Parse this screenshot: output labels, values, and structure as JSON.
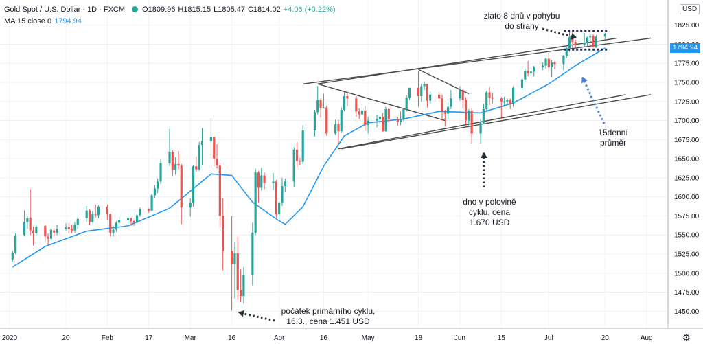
{
  "legend": {
    "title": "Gold Spot / U.S. Dollar · 1D · FXCM",
    "open": "O1809.96",
    "high": "H1815.15",
    "low": "L1805.47",
    "close": "C1814.02",
    "change": "+4.06 (+0.22%)",
    "ma_label": "MA 15 close 0",
    "ma_value": "1794.94"
  },
  "currency": "USD",
  "last_price_tag": "1794.94",
  "colors": {
    "up": "#26a69a",
    "down": "#ef5350",
    "ma": "#2196f3",
    "trendline": "#4a4a4a",
    "marker": "#1a237e"
  },
  "chart_data": {
    "type": "candlestick",
    "title": "Gold Spot / U.S. Dollar · 1D · FXCM",
    "ylim": [
      1435,
      1840
    ],
    "y_ticks": [
      1450,
      1475,
      1500,
      1525,
      1550,
      1575,
      1600,
      1625,
      1650,
      1675,
      1700,
      1725,
      1750,
      1775,
      1800,
      1825
    ],
    "x_ticks": [
      "2020",
      "20",
      "Feb",
      "17",
      "Mar",
      "16",
      "Apr",
      "16",
      "May",
      "18",
      "Jun",
      "15",
      "Jul",
      "20",
      "Aug"
    ],
    "x_tick_dates": [
      "2020-01-01",
      "2020-01-20",
      "2020-02-03",
      "2020-02-17",
      "2020-03-02",
      "2020-03-16",
      "2020-04-01",
      "2020-04-16",
      "2020-05-01",
      "2020-05-18",
      "2020-06-01",
      "2020-06-15",
      "2020-07-01",
      "2020-07-20",
      "2020-08-03"
    ],
    "candles": [
      [
        "2020-01-02",
        1518,
        1529,
        1515,
        1527
      ],
      [
        "2020-01-03",
        1527,
        1552,
        1525,
        1549
      ],
      [
        "2020-01-06",
        1550,
        1582,
        1548,
        1567
      ],
      [
        "2020-01-07",
        1567,
        1575,
        1558,
        1572
      ],
      [
        "2020-01-08",
        1573,
        1610,
        1550,
        1556
      ],
      [
        "2020-01-09",
        1556,
        1561,
        1536,
        1552
      ],
      [
        "2020-01-10",
        1552,
        1563,
        1549,
        1561
      ],
      [
        "2020-01-13",
        1562,
        1563,
        1541,
        1548
      ],
      [
        "2020-01-14",
        1548,
        1552,
        1536,
        1545
      ],
      [
        "2020-01-15",
        1545,
        1559,
        1542,
        1557
      ],
      [
        "2020-01-16",
        1556,
        1559,
        1548,
        1553
      ],
      [
        "2020-01-17",
        1553,
        1563,
        1550,
        1558
      ],
      [
        "2020-01-20",
        1558,
        1565,
        1556,
        1560
      ],
      [
        "2020-01-21",
        1560,
        1566,
        1552,
        1558
      ],
      [
        "2020-01-22",
        1558,
        1563,
        1553,
        1556
      ],
      [
        "2020-01-23",
        1556,
        1567,
        1553,
        1563
      ],
      [
        "2020-01-24",
        1563,
        1574,
        1558,
        1571
      ],
      [
        "2020-01-27",
        1572,
        1588,
        1567,
        1582
      ],
      [
        "2020-01-28",
        1582,
        1584,
        1563,
        1567
      ],
      [
        "2020-01-29",
        1567,
        1581,
        1566,
        1577
      ],
      [
        "2020-01-30",
        1577,
        1590,
        1573,
        1576
      ],
      [
        "2020-01-31",
        1576,
        1589,
        1572,
        1587
      ],
      [
        "2020-02-03",
        1587,
        1590,
        1570,
        1577
      ],
      [
        "2020-02-04",
        1577,
        1578,
        1548,
        1553
      ],
      [
        "2020-02-05",
        1553,
        1562,
        1548,
        1557
      ],
      [
        "2020-02-06",
        1557,
        1568,
        1554,
        1566
      ],
      [
        "2020-02-07",
        1566,
        1574,
        1562,
        1570
      ],
      [
        "2020-02-10",
        1570,
        1575,
        1565,
        1572
      ],
      [
        "2020-02-11",
        1572,
        1573,
        1562,
        1568
      ],
      [
        "2020-02-12",
        1568,
        1570,
        1562,
        1566
      ],
      [
        "2020-02-13",
        1566,
        1578,
        1564,
        1576
      ],
      [
        "2020-02-14",
        1576,
        1586,
        1574,
        1584
      ],
      [
        "2020-02-17",
        1584,
        1585,
        1579,
        1582
      ],
      [
        "2020-02-18",
        1582,
        1604,
        1581,
        1602
      ],
      [
        "2020-02-19",
        1602,
        1615,
        1599,
        1611
      ],
      [
        "2020-02-20",
        1611,
        1624,
        1605,
        1620
      ],
      [
        "2020-02-21",
        1620,
        1649,
        1617,
        1644
      ],
      [
        "2020-02-24",
        1644,
        1689,
        1640,
        1659
      ],
      [
        "2020-02-25",
        1659,
        1661,
        1627,
        1635
      ],
      [
        "2020-02-26",
        1635,
        1652,
        1629,
        1643
      ],
      [
        "2020-02-27",
        1643,
        1660,
        1636,
        1641
      ],
      [
        "2020-02-28",
        1641,
        1643,
        1564,
        1586
      ],
      [
        "2020-03-02",
        1586,
        1598,
        1574,
        1592
      ],
      [
        "2020-03-03",
        1592,
        1642,
        1587,
        1640
      ],
      [
        "2020-03-04",
        1640,
        1653,
        1633,
        1636
      ],
      [
        "2020-03-05",
        1636,
        1672,
        1634,
        1668
      ],
      [
        "2020-03-06",
        1668,
        1690,
        1642,
        1673
      ],
      [
        "2020-03-09",
        1673,
        1703,
        1651,
        1678
      ],
      [
        "2020-03-10",
        1678,
        1680,
        1640,
        1650
      ],
      [
        "2020-03-11",
        1650,
        1669,
        1637,
        1641
      ],
      [
        "2020-03-12",
        1641,
        1645,
        1560,
        1575
      ],
      [
        "2020-03-13",
        1575,
        1598,
        1504,
        1529
      ],
      [
        "2020-03-16",
        1529,
        1575,
        1451,
        1512
      ],
      [
        "2020-03-17",
        1512,
        1541,
        1467,
        1526
      ],
      [
        "2020-03-18",
        1526,
        1548,
        1465,
        1478
      ],
      [
        "2020-03-19",
        1478,
        1505,
        1462,
        1470
      ],
      [
        "2020-03-20",
        1470,
        1508,
        1460,
        1498
      ],
      [
        "2020-03-23",
        1498,
        1566,
        1484,
        1553
      ],
      [
        "2020-03-24",
        1553,
        1637,
        1550,
        1632
      ],
      [
        "2020-03-25",
        1632,
        1634,
        1592,
        1612
      ],
      [
        "2020-03-26",
        1612,
        1638,
        1608,
        1628
      ],
      [
        "2020-03-27",
        1628,
        1632,
        1610,
        1618
      ],
      [
        "2020-03-30",
        1618,
        1631,
        1609,
        1620
      ],
      [
        "2020-03-31",
        1620,
        1622,
        1572,
        1577
      ],
      [
        "2020-04-01",
        1577,
        1594,
        1571,
        1592
      ],
      [
        "2020-04-02",
        1592,
        1625,
        1588,
        1614
      ],
      [
        "2020-04-03",
        1614,
        1624,
        1606,
        1620
      ],
      [
        "2020-04-06",
        1620,
        1665,
        1613,
        1662
      ],
      [
        "2020-04-07",
        1662,
        1672,
        1639,
        1647
      ],
      [
        "2020-04-08",
        1647,
        1651,
        1642,
        1646
      ],
      [
        "2020-04-09",
        1646,
        1694,
        1643,
        1687
      ],
      [
        "2020-04-13",
        1687,
        1714,
        1679,
        1711
      ],
      [
        "2020-04-14",
        1711,
        1745,
        1708,
        1727
      ],
      [
        "2020-04-15",
        1727,
        1729,
        1704,
        1716
      ],
      [
        "2020-04-16",
        1716,
        1735,
        1716,
        1717
      ],
      [
        "2020-04-17",
        1717,
        1719,
        1680,
        1683
      ],
      [
        "2020-04-20",
        1683,
        1701,
        1681,
        1695
      ],
      [
        "2020-04-21",
        1695,
        1701,
        1670,
        1686
      ],
      [
        "2020-04-22",
        1686,
        1717,
        1684,
        1714
      ],
      [
        "2020-04-23",
        1714,
        1738,
        1712,
        1732
      ],
      [
        "2020-04-24",
        1732,
        1737,
        1719,
        1729
      ],
      [
        "2020-04-27",
        1729,
        1732,
        1705,
        1712
      ],
      [
        "2020-04-28",
        1712,
        1716,
        1702,
        1708
      ],
      [
        "2020-04-29",
        1708,
        1718,
        1700,
        1713
      ],
      [
        "2020-04-30",
        1713,
        1719,
        1686,
        1694
      ],
      [
        "2020-05-01",
        1694,
        1705,
        1683,
        1700
      ],
      [
        "2020-05-04",
        1700,
        1707,
        1691,
        1702
      ],
      [
        "2020-05-05",
        1702,
        1708,
        1695,
        1705
      ],
      [
        "2020-05-06",
        1705,
        1710,
        1685,
        1686
      ],
      [
        "2020-05-07",
        1686,
        1718,
        1685,
        1715
      ],
      [
        "2020-05-08",
        1715,
        1718,
        1697,
        1702
      ],
      [
        "2020-05-11",
        1702,
        1705,
        1693,
        1698
      ],
      [
        "2020-05-12",
        1698,
        1712,
        1694,
        1701
      ],
      [
        "2020-05-13",
        1701,
        1716,
        1699,
        1715
      ],
      [
        "2020-05-14",
        1715,
        1733,
        1712,
        1730
      ],
      [
        "2020-05-15",
        1730,
        1743,
        1727,
        1743
      ],
      [
        "2020-05-18",
        1743,
        1765,
        1718,
        1732
      ],
      [
        "2020-05-19",
        1732,
        1748,
        1725,
        1745
      ],
      [
        "2020-05-20",
        1745,
        1751,
        1740,
        1748
      ],
      [
        "2020-05-21",
        1748,
        1748,
        1717,
        1726
      ],
      [
        "2020-05-22",
        1726,
        1738,
        1722,
        1734
      ],
      [
        "2020-05-25",
        1734,
        1737,
        1725,
        1729
      ],
      [
        "2020-05-26",
        1729,
        1734,
        1700,
        1711
      ],
      [
        "2020-05-27",
        1711,
        1714,
        1692,
        1709
      ],
      [
        "2020-05-28",
        1709,
        1724,
        1702,
        1718
      ],
      [
        "2020-05-29",
        1718,
        1740,
        1715,
        1729
      ],
      [
        "2020-06-01",
        1729,
        1745,
        1726,
        1740
      ],
      [
        "2020-06-02",
        1740,
        1742,
        1716,
        1727
      ],
      [
        "2020-06-03",
        1727,
        1730,
        1694,
        1700
      ],
      [
        "2020-06-04",
        1700,
        1715,
        1693,
        1713
      ],
      [
        "2020-06-05",
        1713,
        1716,
        1670,
        1683
      ],
      [
        "2020-06-08",
        1683,
        1702,
        1670,
        1697
      ],
      [
        "2020-06-09",
        1697,
        1722,
        1695,
        1715
      ],
      [
        "2020-06-10",
        1715,
        1739,
        1712,
        1737
      ],
      [
        "2020-06-11",
        1737,
        1745,
        1720,
        1730
      ],
      [
        "2020-06-12",
        1730,
        1736,
        1722,
        1729
      ],
      [
        "2020-06-15",
        1729,
        1731,
        1703,
        1725
      ],
      [
        "2020-06-16",
        1725,
        1731,
        1718,
        1725
      ],
      [
        "2020-06-17",
        1725,
        1729,
        1722,
        1727
      ],
      [
        "2020-06-18",
        1727,
        1729,
        1715,
        1722
      ],
      [
        "2020-06-19",
        1722,
        1745,
        1718,
        1743
      ],
      [
        "2020-06-22",
        1743,
        1756,
        1740,
        1754
      ],
      [
        "2020-06-23",
        1754,
        1768,
        1750,
        1765
      ],
      [
        "2020-06-24",
        1765,
        1778,
        1758,
        1762
      ],
      [
        "2020-06-25",
        1762,
        1770,
        1755,
        1764
      ],
      [
        "2020-06-26",
        1764,
        1772,
        1758,
        1770
      ],
      [
        "2020-06-29",
        1770,
        1776,
        1766,
        1772
      ],
      [
        "2020-06-30",
        1772,
        1782,
        1768,
        1781
      ],
      [
        "2020-07-01",
        1781,
        1789,
        1764,
        1770
      ],
      [
        "2020-07-02",
        1770,
        1779,
        1757,
        1776
      ],
      [
        "2020-07-03",
        1776,
        1778,
        1767,
        1774
      ],
      [
        "2020-07-06",
        1774,
        1786,
        1766,
        1785
      ],
      [
        "2020-07-07",
        1785,
        1797,
        1782,
        1795
      ],
      [
        "2020-07-08",
        1795,
        1818,
        1790,
        1809
      ],
      [
        "2020-07-09",
        1809,
        1818,
        1795,
        1803
      ],
      [
        "2020-07-10",
        1803,
        1806,
        1795,
        1799
      ],
      [
        "2020-07-13",
        1799,
        1815,
        1797,
        1802
      ],
      [
        "2020-07-14",
        1802,
        1810,
        1797,
        1809
      ],
      [
        "2020-07-15",
        1809,
        1813,
        1801,
        1811
      ],
      [
        "2020-07-16",
        1811,
        1813,
        1796,
        1796
      ],
      [
        "2020-07-17",
        1796,
        1812,
        1795,
        1810
      ],
      [
        "2020-07-20",
        1810,
        1815,
        1805,
        1814
      ]
    ],
    "ma": {
      "name": "MA 15 close 0",
      "points": [
        [
          "2020-01-02",
          1508
        ],
        [
          "2020-01-13",
          1535
        ],
        [
          "2020-01-27",
          1555
        ],
        [
          "2020-02-10",
          1562
        ],
        [
          "2020-02-24",
          1585
        ],
        [
          "2020-03-09",
          1630
        ],
        [
          "2020-03-16",
          1628
        ],
        [
          "2020-03-23",
          1593
        ],
        [
          "2020-03-31",
          1571
        ],
        [
          "2020-04-03",
          1564
        ],
        [
          "2020-04-09",
          1587
        ],
        [
          "2020-04-16",
          1640
        ],
        [
          "2020-04-23",
          1680
        ],
        [
          "2020-05-01",
          1697
        ],
        [
          "2020-05-13",
          1702
        ],
        [
          "2020-05-25",
          1712
        ],
        [
          "2020-06-08",
          1710
        ],
        [
          "2020-06-19",
          1723
        ],
        [
          "2020-07-01",
          1748
        ],
        [
          "2020-07-10",
          1772
        ],
        [
          "2020-07-20",
          1795
        ]
      ]
    },
    "trendlines": [
      {
        "from": [
          "2020-04-14",
          1748
        ],
        "to": [
          "2020-07-24",
          1808
        ]
      },
      {
        "from": [
          "2020-04-21",
          1663
        ],
        "to": [
          "2020-07-27",
          1734
        ]
      },
      {
        "from": [
          "2020-04-14",
          1748
        ],
        "to": [
          "2020-05-27",
          1700
        ]
      },
      {
        "from": [
          "2020-05-18",
          1767
        ],
        "to": [
          "2020-06-04",
          1735
        ]
      }
    ],
    "consolidation_box": {
      "from": "2020-07-07",
      "to": "2020-07-20",
      "top": 1818,
      "bottom": 1793
    }
  },
  "annotations": {
    "consolidation_line1": "zlato 8 dnů v pohybu",
    "consolidation_line2": "do strany",
    "ma_line1": "15denní",
    "ma_line2": "průměr",
    "midcycle_line1": "dno v polovině",
    "midcycle_line2": "cyklu, cena",
    "midcycle_line3": "1.670 USD",
    "primary_line1": "počátek primárního cyklu,",
    "primary_line2": "16.3., cena 1.451 USD"
  }
}
